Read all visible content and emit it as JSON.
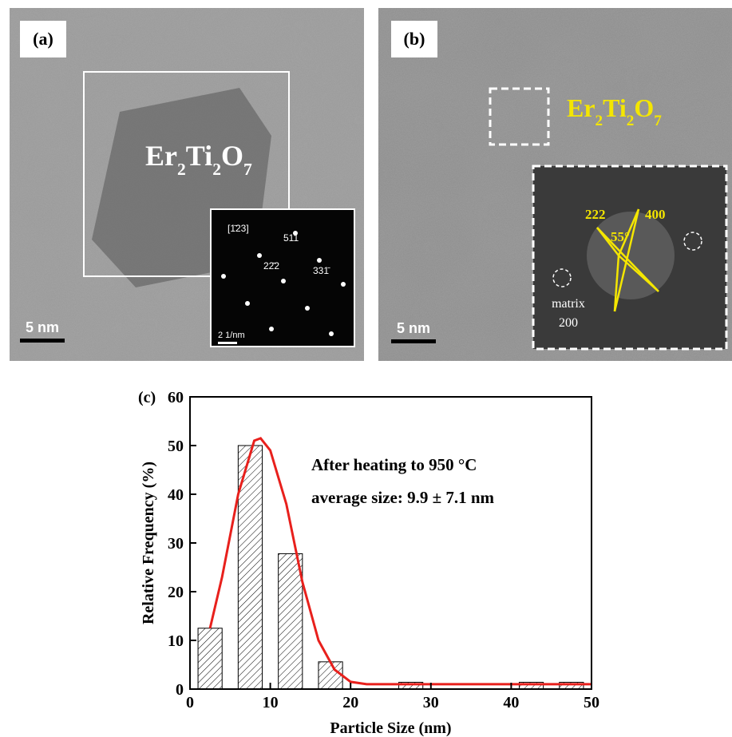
{
  "panels": [
    {
      "label": "(a)",
      "phase": "Er2Ti2O7",
      "scale_bar": "5 nm",
      "inset": {
        "zone_axis": "[1̄23]",
        "spots": [
          "511",
          "22̄2",
          "331̄"
        ],
        "scale_bar": "2 1/nm"
      }
    },
    {
      "label": "(b)",
      "phase": "Er2Ti2O7",
      "scale_bar": "5 nm",
      "inset": {
        "spots": [
          "222",
          "400"
        ],
        "angle": "55°",
        "matrix": "matrix",
        "matrix_spot": "200"
      }
    }
  ],
  "chart_data": {
    "type": "histogram",
    "panel_label": "(c)",
    "x_label": "Particle Size (nm)",
    "y_label": "Relative Frequency (%)",
    "annotations": [
      "After heating to 950 °C",
      "average size: 9.9 ± 7.1 nm"
    ],
    "bins": [
      0,
      5,
      10,
      15,
      20,
      25,
      30,
      35,
      40,
      45,
      50
    ],
    "counts": [
      12.5,
      50,
      27.8,
      5.6,
      0,
      1.4,
      0,
      0,
      1.4,
      1.4
    ],
    "fit": {
      "color": "#e8201c",
      "x": [
        2.5,
        4,
        6,
        8,
        8.8,
        10,
        12,
        14,
        16,
        18,
        20,
        22,
        30,
        40,
        50
      ],
      "y": [
        12.5,
        23,
        40,
        51,
        51.5,
        49,
        38,
        22,
        10,
        4,
        1.5,
        1,
        1,
        1,
        1
      ]
    },
    "xlim": [
      0,
      50
    ],
    "ylim": [
      0,
      60
    ],
    "xticks": [
      0,
      10,
      20,
      30,
      40,
      50
    ],
    "yticks": [
      0,
      10,
      20,
      30,
      40,
      50,
      60
    ]
  }
}
